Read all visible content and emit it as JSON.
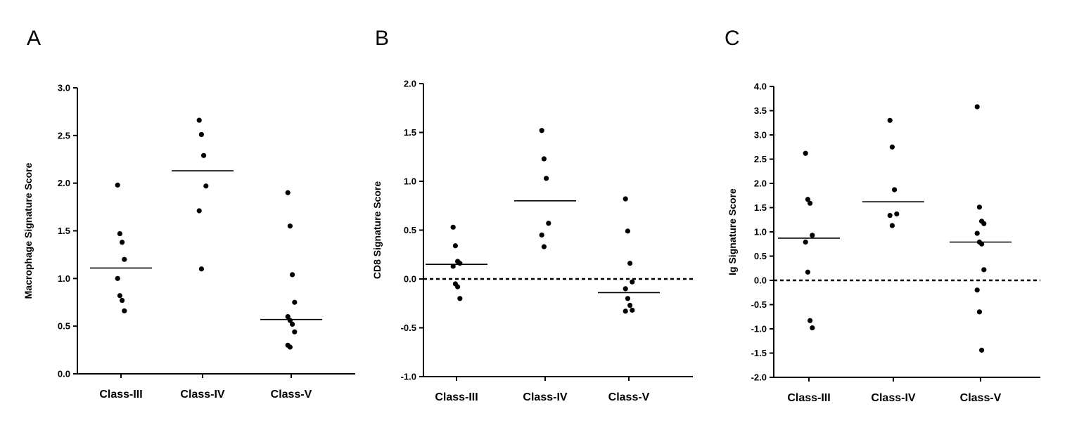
{
  "chart_data": [
    {
      "type": "scatter",
      "panel_label": "A",
      "ylabel": "Macrophage Signature Score",
      "ylim": [
        0.0,
        3.0
      ],
      "yticks": [
        "0.0",
        "0.5",
        "1.0",
        "1.5",
        "2.0",
        "2.5",
        "3.0"
      ],
      "zero_reference_line": false,
      "categories": [
        "Class-III",
        "Class-IV",
        "Class-V"
      ],
      "groups": [
        {
          "name": "Class-III",
          "values": [
            1.98,
            1.47,
            1.38,
            1.2,
            1.0,
            0.82,
            0.77,
            0.66
          ],
          "mean": 1.11
        },
        {
          "name": "Class-IV",
          "values": [
            2.66,
            2.51,
            2.29,
            1.97,
            1.71,
            1.1
          ],
          "mean": 2.13
        },
        {
          "name": "Class-V",
          "values": [
            1.9,
            1.55,
            1.04,
            0.75,
            0.6,
            0.56,
            0.52,
            0.44,
            0.3,
            0.28
          ],
          "mean": 0.57
        }
      ]
    },
    {
      "type": "scatter",
      "panel_label": "B",
      "ylabel": "CD8 Signature Score",
      "ylim": [
        -1.0,
        2.0
      ],
      "yticks": [
        "-1.0",
        "-0.5",
        "0.0",
        "0.5",
        "1.0",
        "1.5",
        "2.0"
      ],
      "zero_reference_line": true,
      "categories": [
        "Class-III",
        "Class-IV",
        "Class-V"
      ],
      "groups": [
        {
          "name": "Class-III",
          "values": [
            0.53,
            0.34,
            0.18,
            0.16,
            0.13,
            -0.05,
            -0.08,
            -0.2
          ],
          "mean": 0.15
        },
        {
          "name": "Class-IV",
          "values": [
            1.52,
            1.23,
            1.03,
            0.57,
            0.45,
            0.33
          ],
          "mean": 0.8
        },
        {
          "name": "Class-V",
          "values": [
            0.82,
            0.49,
            0.16,
            -0.03,
            -0.1,
            -0.2,
            -0.27,
            -0.32,
            -0.33
          ],
          "mean": -0.14
        }
      ]
    },
    {
      "type": "scatter",
      "panel_label": "C",
      "ylabel": "Ig Signature Score",
      "ylim": [
        -2.0,
        4.0
      ],
      "yticks": [
        "-2.0",
        "-1.5",
        "-1.0",
        "-0.5",
        "0.0",
        "0.5",
        "1.0",
        "1.5",
        "2.0",
        "2.5",
        "3.0",
        "3.5",
        "4.0"
      ],
      "zero_reference_line": true,
      "categories": [
        "Class-III",
        "Class-IV",
        "Class-V"
      ],
      "groups": [
        {
          "name": "Class-III",
          "values": [
            2.62,
            1.67,
            1.59,
            0.93,
            0.79,
            0.17,
            -0.83,
            -0.98
          ],
          "mean": 0.87
        },
        {
          "name": "Class-IV",
          "values": [
            3.3,
            2.75,
            1.87,
            1.37,
            1.34,
            1.13
          ],
          "mean": 1.62
        },
        {
          "name": "Class-V",
          "values": [
            3.58,
            1.51,
            1.22,
            1.17,
            0.97,
            0.79,
            0.75,
            0.22,
            -0.2,
            -0.65,
            -1.44
          ],
          "mean": 0.79
        }
      ]
    }
  ]
}
